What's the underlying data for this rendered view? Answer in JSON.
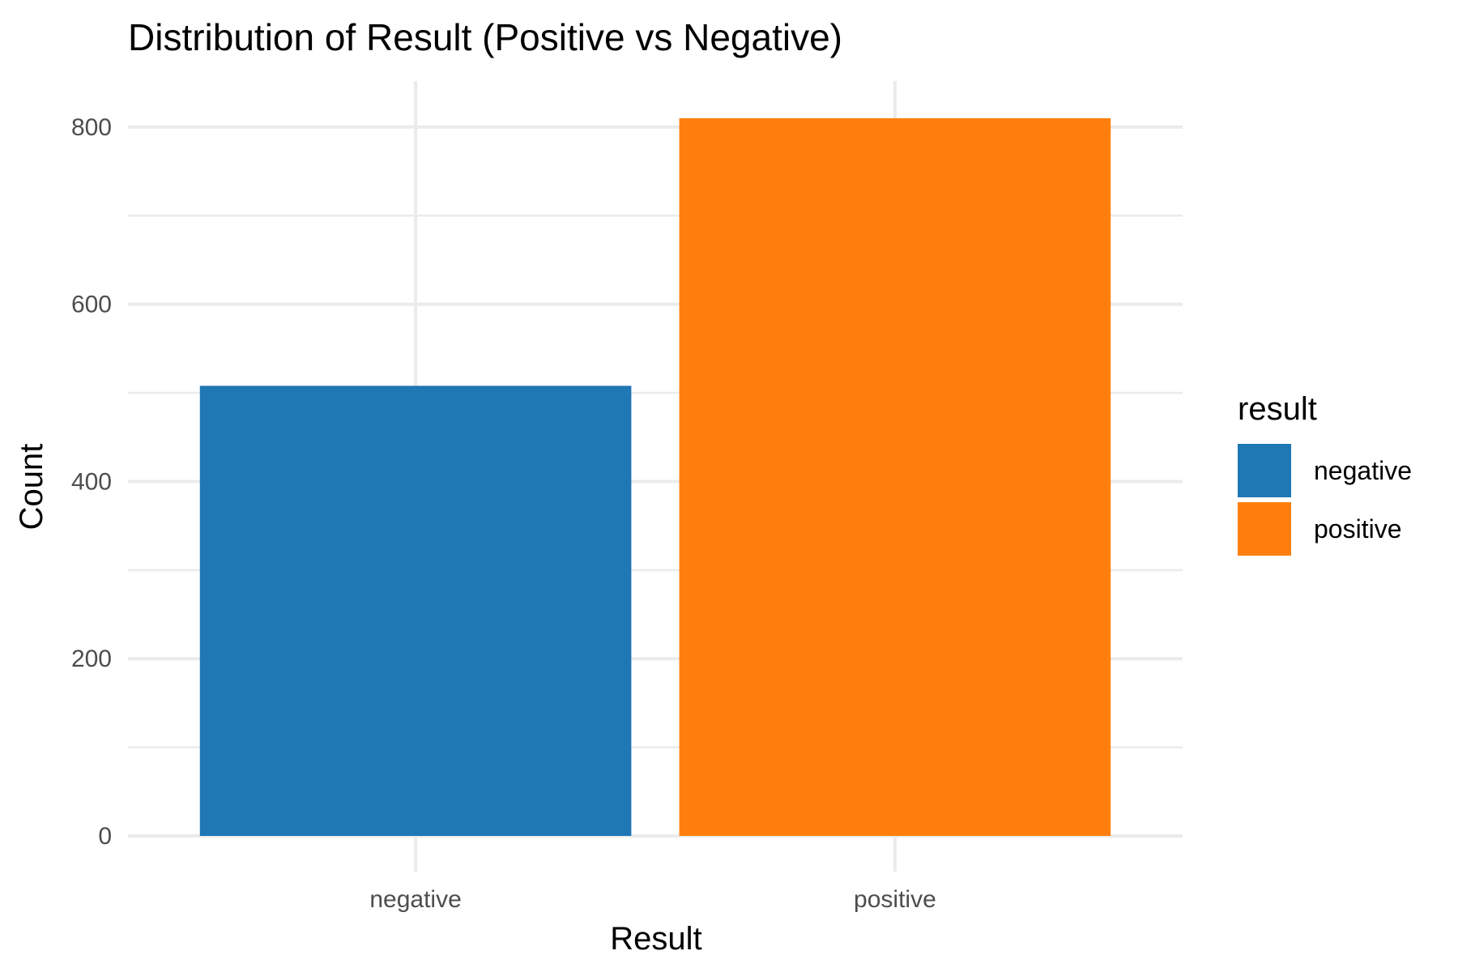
{
  "chart_data": {
    "type": "bar",
    "title": "Distribution of Result (Positive vs Negative)",
    "xlabel": "Result",
    "ylabel": "Count",
    "categories": [
      "negative",
      "positive"
    ],
    "values": [
      508,
      810
    ],
    "colors": [
      "#1f77b4",
      "#ff7f0e"
    ],
    "ylim": [
      0,
      852
    ],
    "yticks": [
      0,
      200,
      400,
      600,
      800
    ],
    "ytick_labels": [
      "0",
      "200",
      "400",
      "600",
      "800"
    ],
    "grid": true,
    "legend": {
      "title": "result",
      "placement": "right",
      "entries": [
        {
          "label": "negative",
          "color": "#1f77b4"
        },
        {
          "label": "positive",
          "color": "#ff7f0e"
        }
      ]
    }
  }
}
